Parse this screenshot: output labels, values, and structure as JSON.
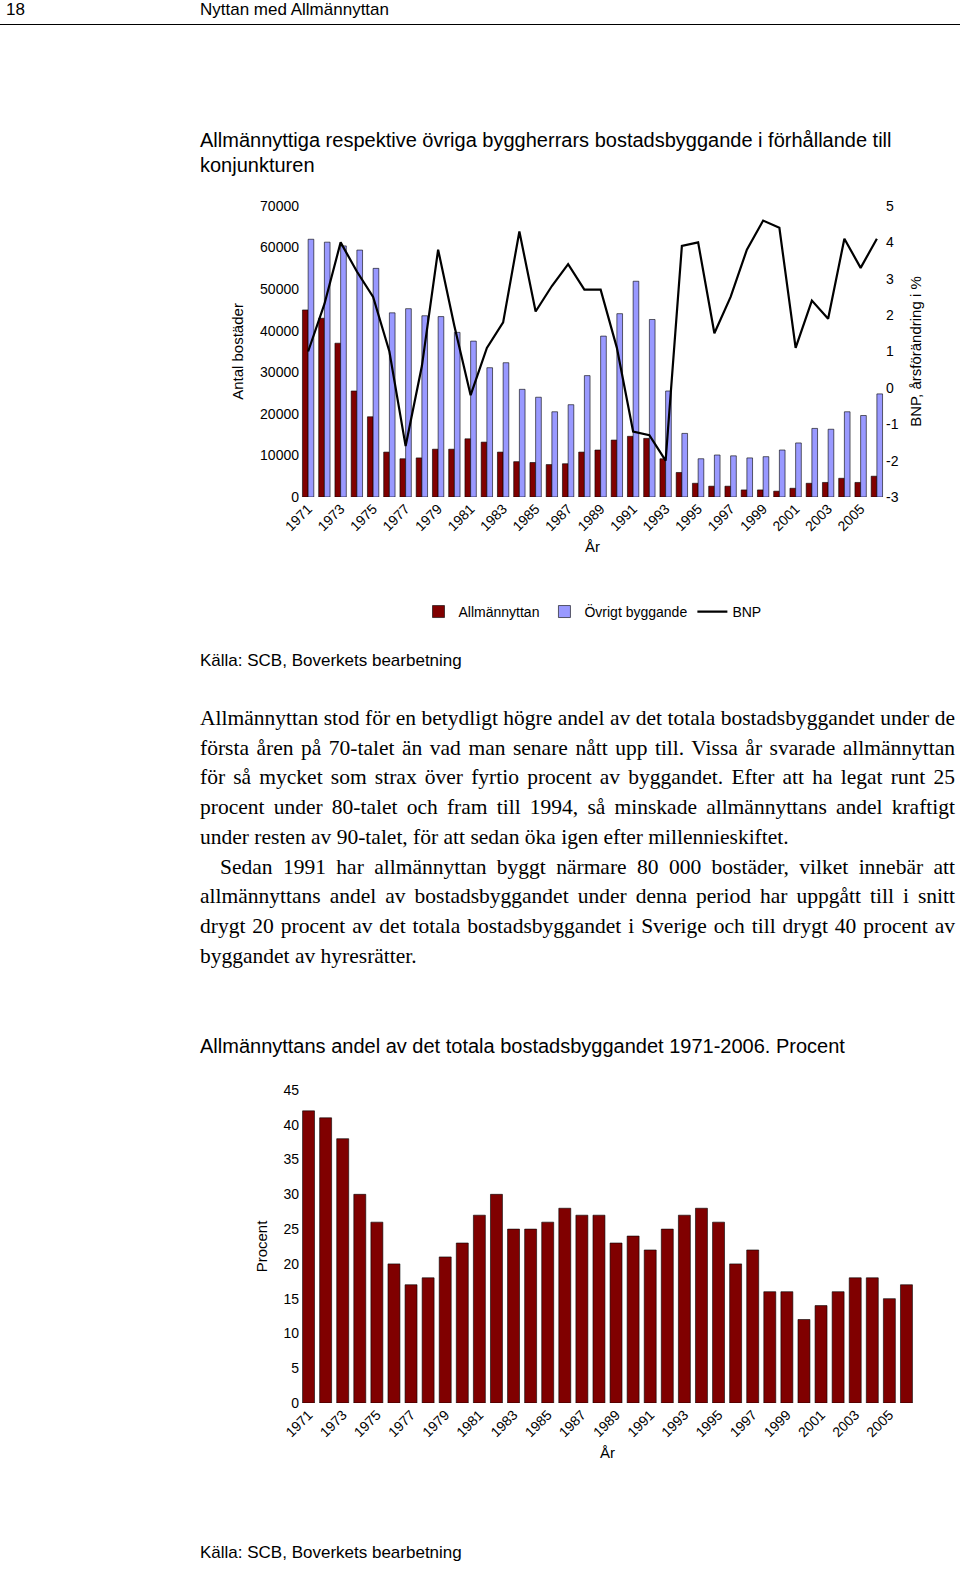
{
  "header": {
    "page_number": "18",
    "running_title": "Nyttan med Allmännyttan"
  },
  "chart_data": [
    {
      "type": "bar",
      "title": "Allmännyttiga respektive övriga byggherrars bostadsbyggande i förhållande till konjunkturen",
      "source": "Källa: SCB, Boverkets bearbetning",
      "x_label": "År",
      "y_label": "Antal bostäder",
      "y2_label": "BNP, årsförändring i %",
      "categories": [
        "1971",
        null,
        "1973",
        null,
        "1975",
        null,
        "1977",
        null,
        "1979",
        null,
        "1981",
        null,
        "1983",
        null,
        "1985",
        null,
        "1987",
        null,
        "1989",
        null,
        "1991",
        null,
        "1993",
        null,
        "1995",
        null,
        "1997",
        null,
        "1999",
        null,
        "2001",
        null,
        "2003",
        null,
        "2005",
        null
      ],
      "series": [
        {
          "name": "Allmännyttan",
          "type": "bar",
          "color": "#800000",
          "values": [
            45000,
            43000,
            37000,
            25500,
            19300,
            10800,
            9200,
            9400,
            11500,
            11500,
            14000,
            13200,
            10800,
            8500,
            8300,
            7800,
            8000,
            10800,
            11300,
            13700,
            14600,
            14100,
            9200,
            5900,
            3300,
            2600,
            2600,
            1700,
            1700,
            1400,
            2100,
            3300,
            3500,
            4500,
            3500,
            5000
          ]
        },
        {
          "name": "Övrigt byggande",
          "type": "bar",
          "color": "#9999ff",
          "values": [
            62000,
            61300,
            60400,
            59400,
            55000,
            44300,
            45300,
            43600,
            43400,
            39600,
            37500,
            31100,
            32300,
            25900,
            24000,
            20500,
            22200,
            29200,
            38700,
            44100,
            51900,
            42700,
            25500,
            15300,
            9200,
            10100,
            9900,
            9400,
            9700,
            11300,
            13000,
            16500,
            16300,
            20500,
            19600,
            24800
          ]
        },
        {
          "name": "BNP",
          "type": "line",
          "color": "#000000",
          "axis": "y2",
          "values": [
            1.0,
            2.3,
            4.0,
            3.2,
            2.5,
            1.0,
            -1.6,
            0.6,
            3.8,
            1.7,
            -0.2,
            1.1,
            1.8,
            4.3,
            2.1,
            2.8,
            3.4,
            2.7,
            2.7,
            1.1,
            -1.2,
            -1.3,
            -2.0,
            3.9,
            4.0,
            1.5,
            2.5,
            3.8,
            4.6,
            4.4,
            1.1,
            2.4,
            1.9,
            4.1,
            3.3,
            4.1
          ]
        }
      ],
      "ylim": [
        0,
        70000
      ],
      "yticks": [
        0,
        10000,
        20000,
        30000,
        40000,
        50000,
        60000,
        70000
      ],
      "y2lim": [
        -3,
        5
      ],
      "y2ticks": [
        -3,
        -2,
        -1,
        0,
        1,
        2,
        3,
        4,
        5
      ],
      "grid": false,
      "legend": "bottom"
    },
    {
      "type": "bar",
      "title": "Allmännyttans andel av det totala bostadsbyggandet 1971-2006. Procent",
      "source": "Källa: SCB, Boverkets bearbetning",
      "x_label": "År",
      "y_label": "Procent",
      "categories": [
        "1971",
        null,
        "1973",
        null,
        "1975",
        null,
        "1977",
        null,
        "1979",
        null,
        "1981",
        null,
        "1983",
        null,
        "1985",
        null,
        "1987",
        null,
        "1989",
        null,
        "1991",
        null,
        "1993",
        null,
        "1995",
        null,
        "1997",
        null,
        "1999",
        null,
        "2001",
        null,
        "2003",
        null,
        "2005",
        null
      ],
      "values": [
        42,
        41,
        38,
        30,
        26,
        20,
        17,
        18,
        21,
        23,
        27,
        30,
        25,
        25,
        26,
        28,
        27,
        27,
        23,
        24,
        22,
        25,
        27,
        28,
        26,
        20,
        22,
        16,
        16,
        12,
        14,
        16,
        18,
        18,
        15,
        17
      ],
      "color": "#800000",
      "ylim": [
        0,
        45
      ],
      "yticks": [
        0,
        5,
        10,
        15,
        20,
        25,
        30,
        35,
        40,
        45
      ],
      "grid": false
    }
  ],
  "paragraphs": [
    "Allmännyttan stod för en betydligt högre andel av det totala bostadsbyggandet under de första åren på 70-talet än vad man senare nått upp till. Vissa år svarade allmännyttan för så mycket som strax över fyrtio procent av byggandet. Efter att ha legat runt 25 procent under 80-talet och fram till 1994, så minskade allmännyttans andel kraftigt under resten av 90-talet, för att sedan öka igen efter millennieskiftet.",
    "Sedan 1991 har allmännyttan byggt närmare 80 000 bostäder, vilket innebär att allmännyttans andel av bostadsbyggandet under denna period har uppgått till i snitt drygt 20 procent av det totala bostadsbyggandet i Sverige och till drygt 40 procent av byggandet av hyresrätter."
  ]
}
